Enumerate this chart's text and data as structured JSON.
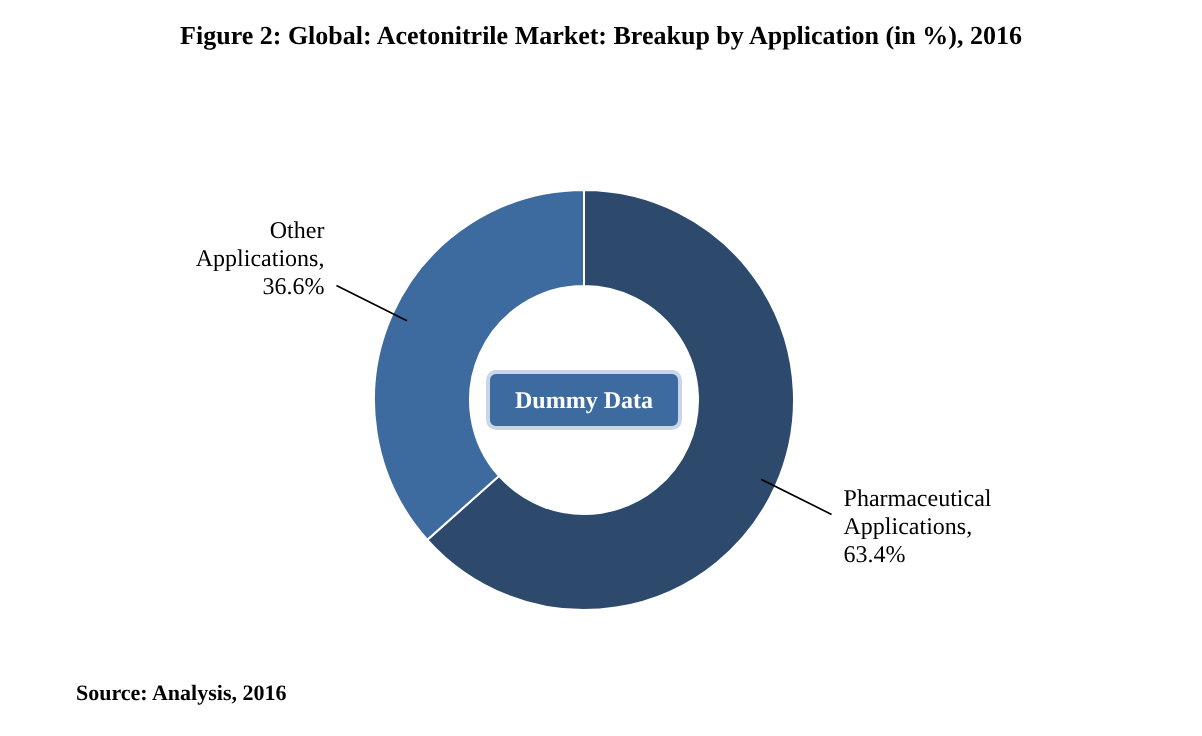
{
  "chart_data": {
    "type": "donut",
    "title": "Figure 2: Global: Acetonitrile Market: Breakup by Application (in %), 2016",
    "categories": [
      "Pharmaceutical Applications",
      "Other Applications"
    ],
    "values": [
      63.4,
      36.6
    ],
    "colors": [
      "#2d4a6d",
      "#3e6b9f"
    ],
    "value_labels": [
      ", 63.4%",
      ", 36.6%"
    ],
    "annotations": [
      "Dummy Data",
      "Source: Analysis, 2016"
    ]
  }
}
